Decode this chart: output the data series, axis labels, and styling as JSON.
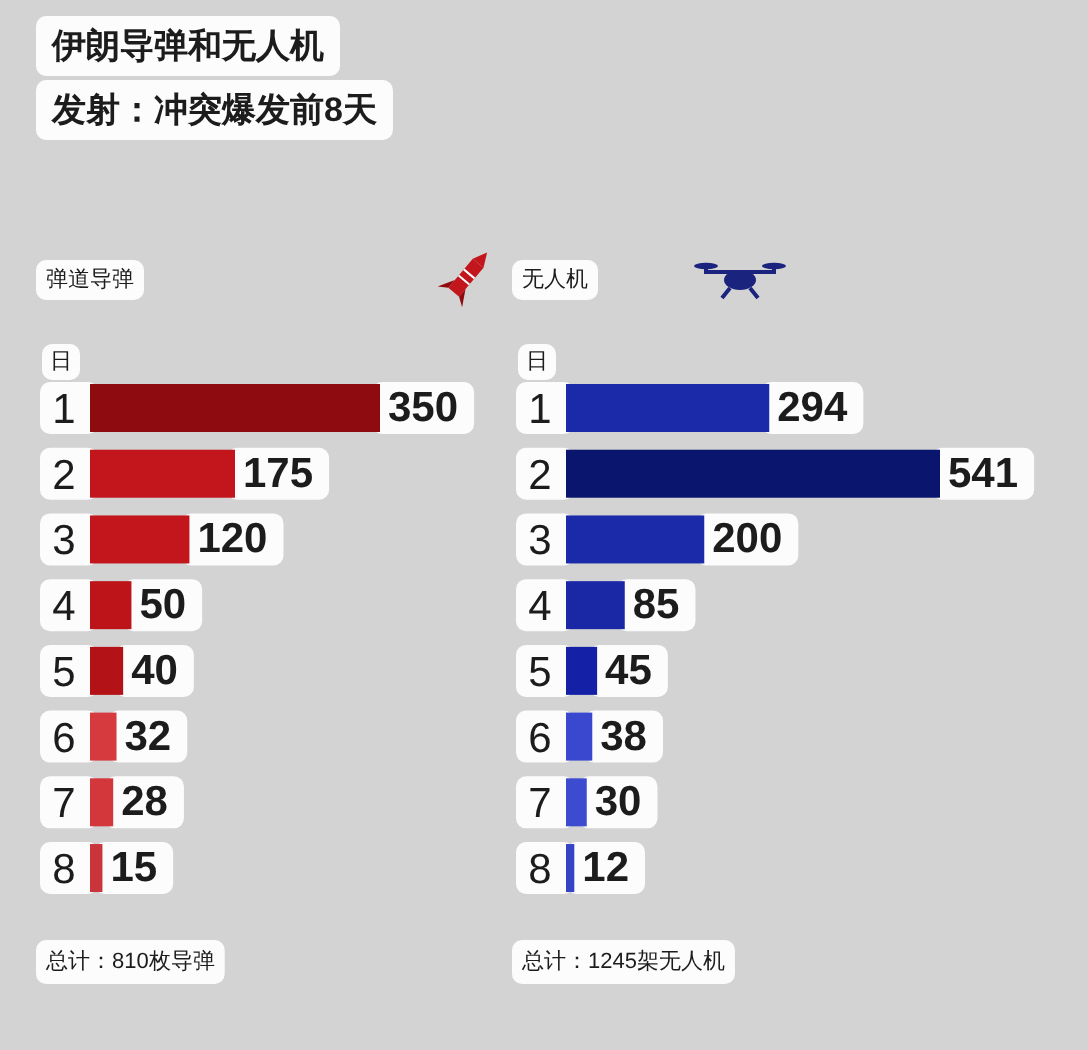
{
  "chart_data": [
    {
      "type": "other",
      "title": "伊朗导弹和无人机",
      "subtitle": "发射：冲突爆发前8天"
    },
    {
      "type": "bar",
      "orientation": "horizontal",
      "title": "弹道导弹",
      "ylabel": "日",
      "categories": [
        "1",
        "2",
        "3",
        "4",
        "5",
        "6",
        "7",
        "8"
      ],
      "values": [
        350,
        175,
        120,
        50,
        40,
        32,
        28,
        15
      ],
      "colors": [
        "#8e0b0f",
        "#c3161c",
        "#c3161c",
        "#bd1419",
        "#b31216",
        "#d63a3e",
        "#d3363b",
        "#c9353a"
      ],
      "data_labels": true,
      "annotations": [
        "总计：810枚导弹"
      ]
    },
    {
      "type": "bar",
      "orientation": "horizontal",
      "title": "无人机",
      "ylabel": "日",
      "categories": [
        "1",
        "2",
        "3",
        "4",
        "5",
        "6",
        "7",
        "8"
      ],
      "values": [
        294,
        541,
        200,
        85,
        45,
        38,
        30,
        12
      ],
      "colors": [
        "#1b2aa8",
        "#0a166e",
        "#1b2aa8",
        "#1a28a6",
        "#1421a6",
        "#3a48cf",
        "#3c4bd0",
        "#3544c4"
      ],
      "data_labels": true,
      "annotations": [
        "总计：1245架无人机"
      ]
    }
  ]
}
